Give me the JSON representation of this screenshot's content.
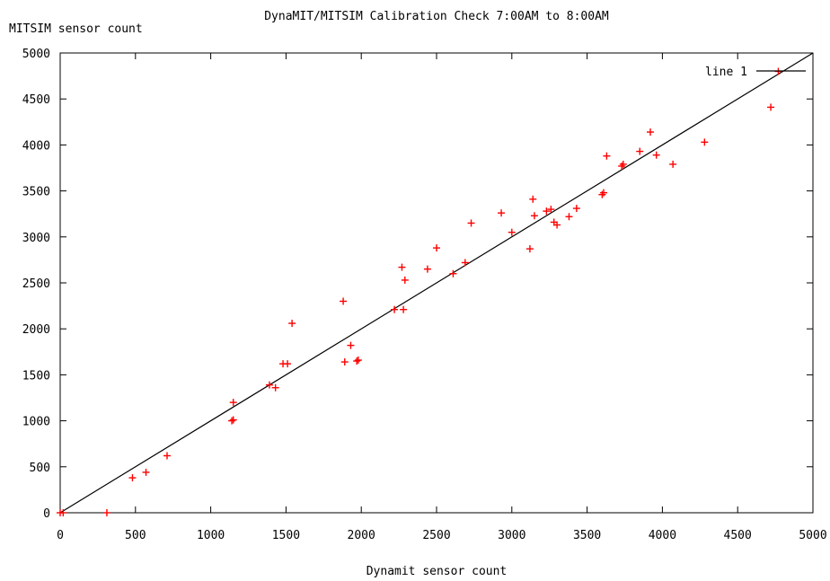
{
  "chart_data": {
    "type": "scatter",
    "title": "DynaMIT/MITSIM Calibration Check 7:00AM to 8:00AM",
    "xlabel": "Dynamit sensor count",
    "ylabel": "MITSIM sensor count",
    "xlim": [
      0,
      5000
    ],
    "ylim": [
      0,
      5000
    ],
    "x_ticks": [
      "0",
      "500",
      "1000",
      "1500",
      "2000",
      "2500",
      "3000",
      "3500",
      "4000",
      "4500",
      "5000"
    ],
    "y_ticks": [
      "0",
      "500",
      "1000",
      "1500",
      "2000",
      "2500",
      "3000",
      "3500",
      "4000",
      "4500",
      "5000"
    ],
    "legend_position": "top-right",
    "grid": false,
    "series": [
      {
        "marker": "+",
        "color": "#ff0000",
        "points": [
          [
            0,
            0
          ],
          [
            20,
            0
          ],
          [
            310,
            0
          ],
          [
            480,
            380
          ],
          [
            570,
            440
          ],
          [
            710,
            620
          ],
          [
            1140,
            1000
          ],
          [
            1150,
            1010
          ],
          [
            1150,
            1200
          ],
          [
            1390,
            1390
          ],
          [
            1430,
            1360
          ],
          [
            1480,
            1620
          ],
          [
            1510,
            1620
          ],
          [
            1540,
            2060
          ],
          [
            1880,
            2300
          ],
          [
            1890,
            1640
          ],
          [
            1930,
            1820
          ],
          [
            1970,
            1650
          ],
          [
            1980,
            1660
          ],
          [
            2220,
            2210
          ],
          [
            2270,
            2670
          ],
          [
            2280,
            2210
          ],
          [
            2290,
            2530
          ],
          [
            2440,
            2650
          ],
          [
            2500,
            2880
          ],
          [
            2610,
            2600
          ],
          [
            2690,
            2720
          ],
          [
            2730,
            3150
          ],
          [
            2930,
            3260
          ],
          [
            3000,
            3050
          ],
          [
            3120,
            2870
          ],
          [
            3140,
            3410
          ],
          [
            3150,
            3230
          ],
          [
            3230,
            3280
          ],
          [
            3260,
            3300
          ],
          [
            3280,
            3160
          ],
          [
            3300,
            3130
          ],
          [
            3380,
            3220
          ],
          [
            3430,
            3310
          ],
          [
            3600,
            3460
          ],
          [
            3610,
            3480
          ],
          [
            3630,
            3880
          ],
          [
            3730,
            3770
          ],
          [
            3740,
            3790
          ],
          [
            3850,
            3930
          ],
          [
            3920,
            4140
          ],
          [
            3960,
            3890
          ],
          [
            4070,
            3790
          ],
          [
            4280,
            4030
          ],
          [
            4720,
            4410
          ],
          [
            4770,
            4800
          ]
        ]
      },
      {
        "name": "line 1",
        "kind": "line",
        "color": "#000000",
        "points": [
          [
            0,
            0
          ],
          [
            5000,
            5000
          ]
        ]
      }
    ]
  }
}
